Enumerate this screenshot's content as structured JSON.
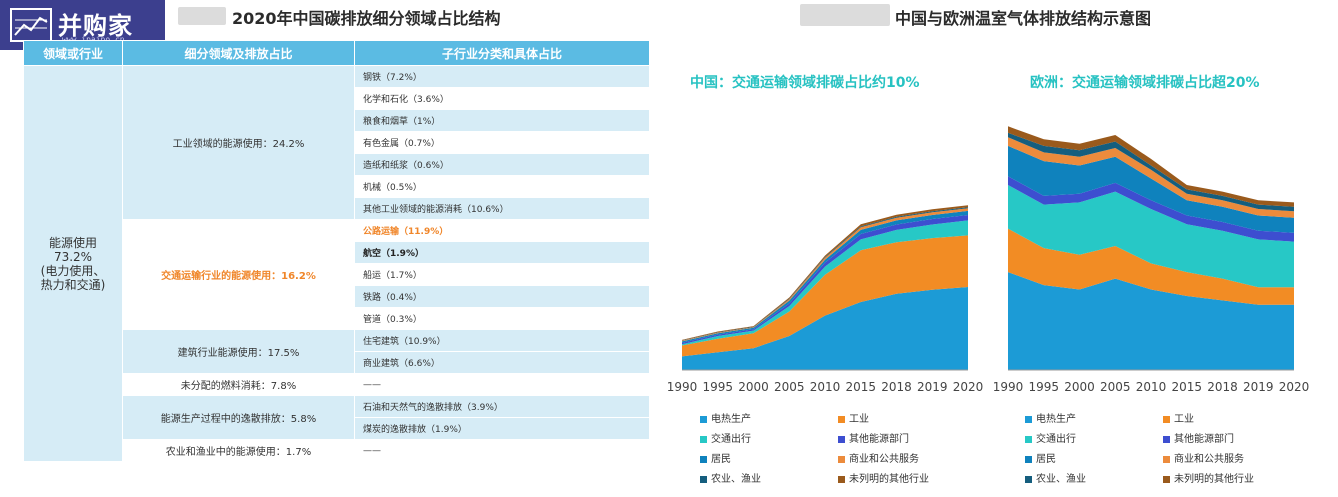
{
  "logo": {
    "text": "并购家",
    "url": "www.ipaipo.cn"
  },
  "left_title": "2020年中国碳排放细分领域占比结构",
  "right_title": "中国与欧洲温室气体排放结构示意图",
  "table": {
    "headers": [
      "领域或行业",
      "细分领域及排放占比",
      "子行业分类和具体占比"
    ],
    "col1": {
      "line1": "能源使用",
      "line2": "73.2%",
      "line3": "(电力使用、",
      "line4": "热力和交通)"
    },
    "groups": [
      {
        "label": "工业领域的能源使用：24.2%",
        "subs": [
          "钢铁（7.2%）",
          "化学和石化（3.6%）",
          "粮食和烟草（1%）",
          "有色金属（0.7%）",
          "造纸和纸浆（0.6%）",
          "机械（0.5%）",
          "其他工业领域的能源消耗（10.6%）"
        ]
      },
      {
        "label": "交通运输行业的能源使用：16.2%",
        "subs": [
          "公路运输（11.9%）",
          "航空（1.9%）",
          "船运（1.7%）",
          "铁路（0.4%）",
          "管道（0.3%）"
        ]
      },
      {
        "label": "建筑行业能源使用：17.5%",
        "subs": [
          "住宅建筑（10.9%）",
          "商业建筑（6.6%）"
        ]
      },
      {
        "label": "未分配的燃料消耗：7.8%",
        "subs": [
          "——"
        ]
      },
      {
        "label": "能源生产过程中的逸散排放：5.8%",
        "subs": [
          "石油和天然气的逸散排放（3.9%）",
          "煤炭的逸散排放（1.9%）"
        ]
      },
      {
        "label": "农业和渔业中的能源使用：1.7%",
        "subs": [
          "——"
        ]
      }
    ]
  },
  "legend": [
    {
      "label": "电热生产",
      "color": "#1c9bd6"
    },
    {
      "label": "工业",
      "color": "#f28c24"
    },
    {
      "label": "交通出行",
      "color": "#27c8c6"
    },
    {
      "label": "其他能源部门",
      "color": "#3d4ed0"
    },
    {
      "label": "居民",
      "color": "#0f82bd"
    },
    {
      "label": "商业和公共服务",
      "color": "#ec8b3c"
    },
    {
      "label": "农业、渔业",
      "color": "#155e7e"
    },
    {
      "label": "未列明的其他行业",
      "color": "#9a5a1c"
    }
  ],
  "chart_data": [
    {
      "type": "area",
      "title": "中国：交通运输领域排碳占比约10%",
      "categories": [
        "1990",
        "1995",
        "2000",
        "2005",
        "2010",
        "2015",
        "2018",
        "2019",
        "2020"
      ],
      "series": [
        {
          "name": "电热生产",
          "values": [
            10,
            13,
            16,
            25,
            40,
            50,
            56,
            59,
            61
          ]
        },
        {
          "name": "工业",
          "values": [
            8,
            10,
            11,
            18,
            30,
            38,
            38,
            38,
            38
          ]
        },
        {
          "name": "交通出行",
          "values": [
            1,
            2,
            2,
            4,
            6,
            8,
            9,
            10,
            11
          ]
        },
        {
          "name": "其他能源部门",
          "values": [
            1,
            1,
            1,
            2,
            3,
            4,
            4,
            4,
            4
          ]
        },
        {
          "name": "居民",
          "values": [
            1,
            1,
            1,
            2,
            2,
            3,
            3,
            3,
            3
          ]
        },
        {
          "name": "商业和公共服务",
          "values": [
            0.5,
            0.5,
            0.5,
            1,
            1.5,
            2,
            2,
            2,
            2
          ]
        },
        {
          "name": "农业、渔业",
          "values": [
            0.3,
            0.3,
            0.3,
            0.5,
            0.6,
            0.6,
            0.7,
            0.7,
            0.7
          ]
        },
        {
          "name": "未列明的其他行业",
          "values": [
            0.3,
            0.5,
            0.5,
            0.8,
            1,
            1.5,
            1.5,
            1.5,
            1.5
          ]
        }
      ]
    },
    {
      "type": "area",
      "title": "欧洲：交通运输领域排碳占比超20%",
      "categories": [
        "1990",
        "1995",
        "2000",
        "2005",
        "2010",
        "2015",
        "2018",
        "2019",
        "2020"
      ],
      "series": [
        {
          "name": "电热生产",
          "values": [
            45,
            39,
            37,
            42,
            37,
            34,
            32,
            30,
            30
          ]
        },
        {
          "name": "工业",
          "values": [
            20,
            17,
            16,
            15,
            12,
            11,
            10,
            8,
            8
          ]
        },
        {
          "name": "交通出行",
          "values": [
            20,
            20,
            24,
            25,
            25,
            22,
            22,
            22,
            21
          ]
        },
        {
          "name": "其他能源部门",
          "values": [
            4,
            4,
            4,
            4,
            4,
            4,
            4,
            4,
            4
          ]
        },
        {
          "name": "居民",
          "values": [
            14,
            16,
            13,
            12,
            10,
            7,
            7,
            7,
            7
          ]
        },
        {
          "name": "商业和公共服务",
          "values": [
            4,
            4,
            4,
            4,
            4,
            3,
            3,
            3,
            3
          ]
        },
        {
          "name": "农业、渔业",
          "values": [
            2,
            3,
            3,
            3,
            2,
            2,
            2,
            2,
            2
          ]
        },
        {
          "name": "未列明的其他行业",
          "values": [
            3,
            3,
            3,
            3,
            3,
            2,
            2,
            2,
            2
          ]
        }
      ]
    }
  ]
}
